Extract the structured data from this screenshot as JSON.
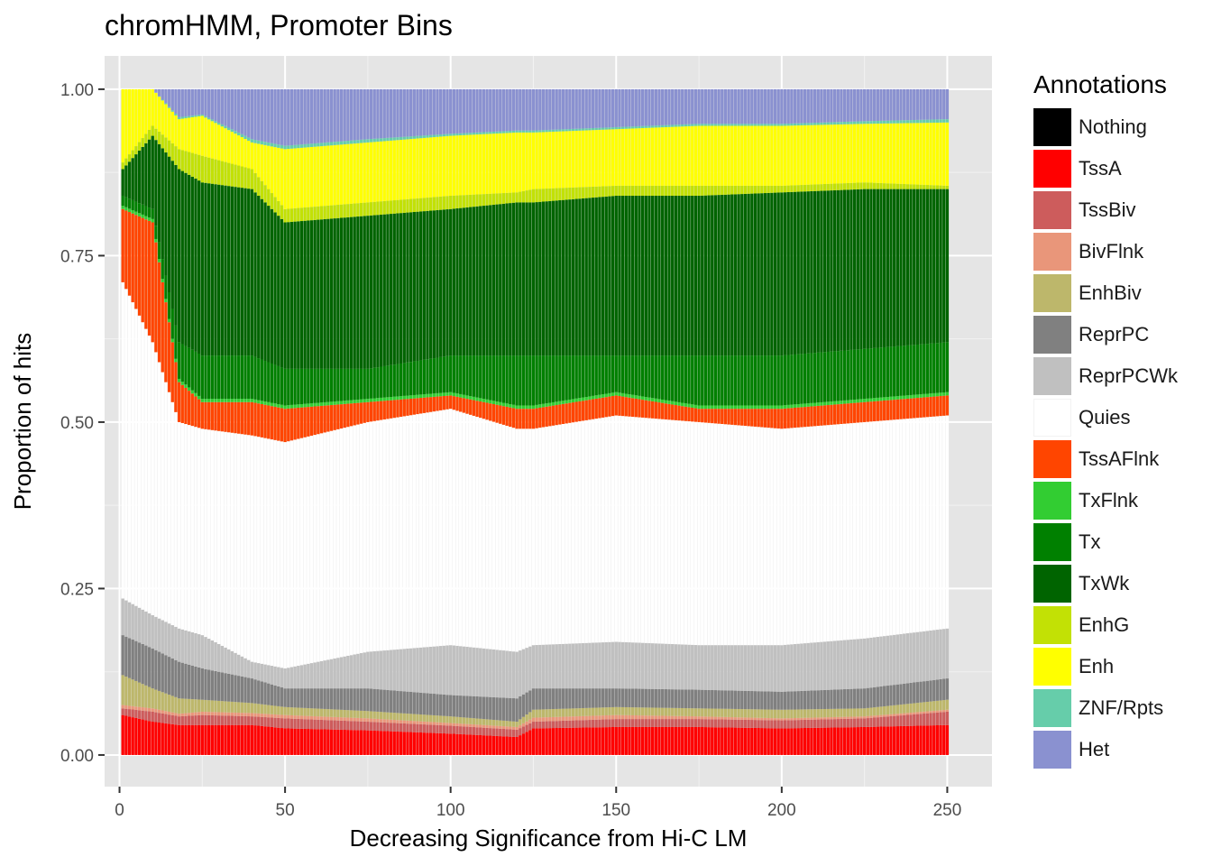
{
  "chart_data": {
    "type": "bar",
    "stacked": true,
    "title": "chromHMM, Promoter Bins",
    "xlabel": "Decreasing Significance from Hi-C LM",
    "ylabel": "Proportion of hits",
    "xlim": [
      0,
      250
    ],
    "ylim": [
      0,
      1
    ],
    "x_ticks": [
      0,
      50,
      100,
      150,
      200,
      250
    ],
    "y_ticks": [
      "0.00",
      "0.25",
      "0.50",
      "0.75",
      "1.00"
    ],
    "legend": {
      "title": "Annotations",
      "position": "right",
      "entries": [
        {
          "name": "Nothing",
          "color": "#000000"
        },
        {
          "name": "TssA",
          "color": "#FF0000"
        },
        {
          "name": "TssBiv",
          "color": "#CD5C5C"
        },
        {
          "name": "BivFlnk",
          "color": "#E9967A"
        },
        {
          "name": "EnhBiv",
          "color": "#BDB76B"
        },
        {
          "name": "ReprPC",
          "color": "#808080"
        },
        {
          "name": "ReprPCWk",
          "color": "#C0C0C0"
        },
        {
          "name": "Quies",
          "color": "#FFFFFF"
        },
        {
          "name": "TssAFlnk",
          "color": "#FF4500"
        },
        {
          "name": "TxFlnk",
          "color": "#32CD32"
        },
        {
          "name": "Tx",
          "color": "#008000"
        },
        {
          "name": "TxWk",
          "color": "#006400"
        },
        {
          "name": "EnhG",
          "color": "#C2E105"
        },
        {
          "name": "Enh",
          "color": "#FFFF00"
        },
        {
          "name": "ZNF/Rpts",
          "color": "#66CDAA"
        },
        {
          "name": "Het",
          "color": "#8A91D0"
        }
      ]
    },
    "bar_count": 250,
    "boundary_profiles": {
      "note_stack_order_bottom_to_top": [
        "TssA",
        "TssBiv",
        "BivFlnk",
        "EnhBiv",
        "ReprPC",
        "ReprPCWk",
        "Quies",
        "TssAFlnk",
        "TxFlnk",
        "Tx",
        "TxWk",
        "EnhG",
        "Enh",
        "ZNF/Rpts",
        "Het"
      ],
      "cumulative_top_x": [
        1,
        10,
        18,
        25,
        40,
        50,
        75,
        100,
        120,
        125,
        150,
        175,
        200,
        225,
        250
      ],
      "TssA": [
        0.06,
        0.05,
        0.045,
        0.045,
        0.045,
        0.04,
        0.037,
        0.032,
        0.027,
        0.04,
        0.042,
        0.042,
        0.04,
        0.042,
        0.045
      ],
      "TssBiv": [
        0.07,
        0.065,
        0.058,
        0.06,
        0.058,
        0.055,
        0.05,
        0.044,
        0.038,
        0.05,
        0.054,
        0.054,
        0.052,
        0.055,
        0.065
      ],
      "BivFlnk": [
        0.075,
        0.07,
        0.062,
        0.065,
        0.063,
        0.06,
        0.055,
        0.048,
        0.042,
        0.056,
        0.06,
        0.058,
        0.055,
        0.058,
        0.068
      ],
      "EnhBiv": [
        0.12,
        0.1,
        0.085,
        0.083,
        0.078,
        0.072,
        0.066,
        0.058,
        0.05,
        0.068,
        0.072,
        0.07,
        0.068,
        0.07,
        0.083
      ],
      "ReprPC": [
        0.18,
        0.16,
        0.14,
        0.13,
        0.115,
        0.1,
        0.1,
        0.09,
        0.085,
        0.1,
        0.1,
        0.098,
        0.095,
        0.1,
        0.115
      ],
      "ReprPCWk": [
        0.235,
        0.21,
        0.19,
        0.18,
        0.14,
        0.13,
        0.155,
        0.165,
        0.155,
        0.165,
        0.17,
        0.165,
        0.165,
        0.175,
        0.19
      ],
      "Quies": [
        0.71,
        0.62,
        0.5,
        0.49,
        0.48,
        0.47,
        0.5,
        0.52,
        0.49,
        0.49,
        0.51,
        0.5,
        0.49,
        0.5,
        0.51
      ],
      "TssAFlnk": [
        0.82,
        0.8,
        0.56,
        0.53,
        0.53,
        0.52,
        0.53,
        0.54,
        0.52,
        0.52,
        0.54,
        0.52,
        0.52,
        0.53,
        0.54
      ],
      "TxFlnk": [
        0.825,
        0.805,
        0.565,
        0.535,
        0.535,
        0.525,
        0.535,
        0.545,
        0.525,
        0.525,
        0.545,
        0.525,
        0.525,
        0.535,
        0.545
      ],
      "Tx": [
        0.84,
        0.82,
        0.62,
        0.6,
        0.6,
        0.58,
        0.58,
        0.6,
        0.6,
        0.6,
        0.6,
        0.6,
        0.6,
        0.61,
        0.62
      ],
      "TxWk": [
        0.88,
        0.93,
        0.88,
        0.86,
        0.85,
        0.8,
        0.81,
        0.82,
        0.83,
        0.83,
        0.84,
        0.84,
        0.845,
        0.85,
        0.85
      ],
      "EnhG": [
        0.89,
        0.945,
        0.91,
        0.9,
        0.88,
        0.82,
        0.83,
        0.84,
        0.845,
        0.85,
        0.855,
        0.855,
        0.855,
        0.86,
        0.855
      ],
      "Enh": [
        1.0,
        1.0,
        0.955,
        0.96,
        0.92,
        0.91,
        0.92,
        0.93,
        0.935,
        0.935,
        0.94,
        0.945,
        0.945,
        0.948,
        0.95
      ],
      "ZNF/Rpts": [
        1.0,
        1.0,
        0.958,
        0.962,
        0.925,
        0.915,
        0.925,
        0.933,
        0.938,
        0.938,
        0.943,
        0.948,
        0.948,
        0.952,
        0.955
      ],
      "Het": [
        1.0,
        1.0,
        1.0,
        1.0,
        1.0,
        1.0,
        1.0,
        1.0,
        1.0,
        1.0,
        1.0,
        1.0,
        1.0,
        1.0,
        1.0
      ]
    },
    "grid": true,
    "panel_background": "#E5E5E5"
  }
}
